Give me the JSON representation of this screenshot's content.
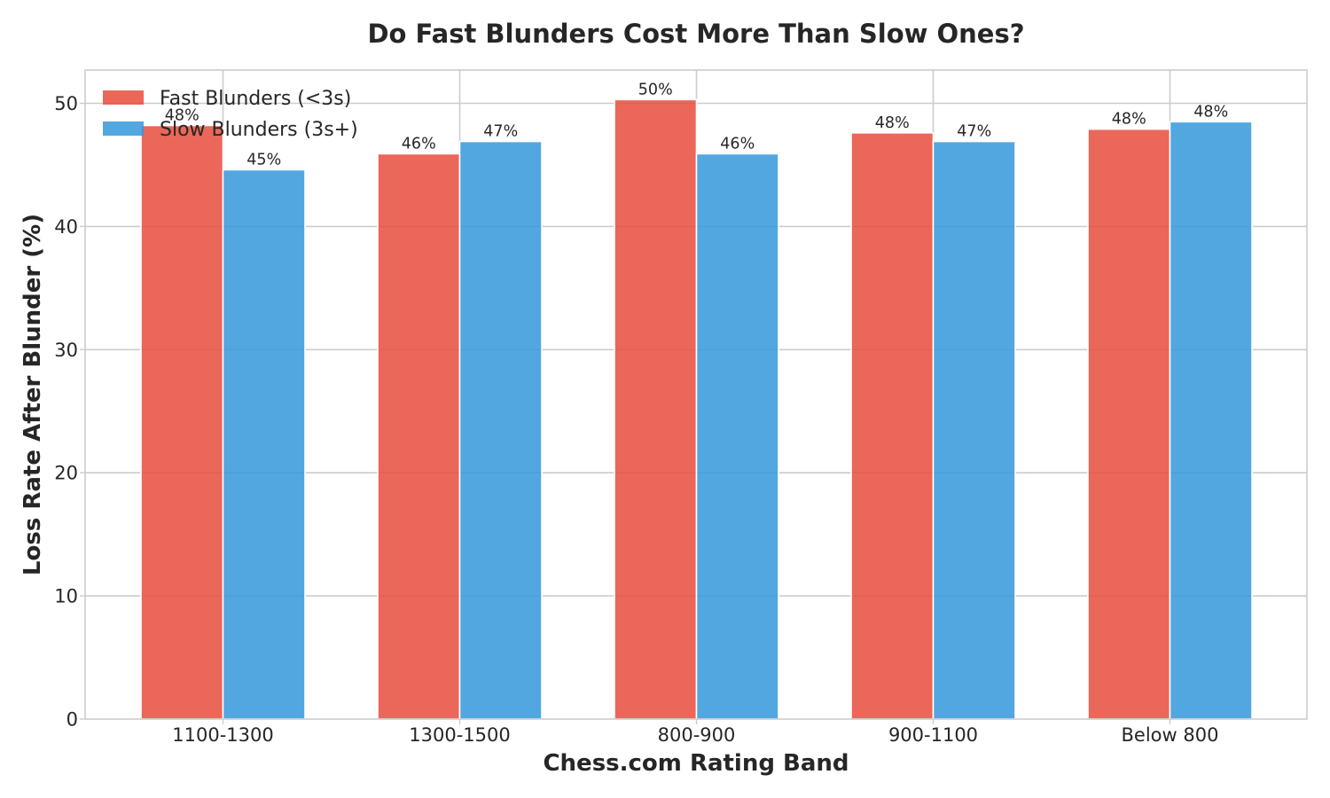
{
  "chart_data": {
    "type": "bar",
    "title": "Do Fast Blunders Cost More Than Slow Ones?",
    "xlabel": "Chess.com Rating Band",
    "ylabel": "Loss Rate After Blunder (%)",
    "categories": [
      "1100-1300",
      "1300-1500",
      "800-900",
      "900-1100",
      "Below 800"
    ],
    "series": [
      {
        "name": "Fast Blunders (<3s)",
        "color": "#e74c3c",
        "values": [
          48.2,
          45.9,
          50.3,
          47.6,
          47.9
        ],
        "labels": [
          "48%",
          "46%",
          "50%",
          "48%",
          "48%"
        ]
      },
      {
        "name": "Slow Blunders (3s+)",
        "color": "#3498db",
        "values": [
          44.6,
          46.9,
          45.9,
          46.9,
          48.5
        ],
        "labels": [
          "45%",
          "47%",
          "46%",
          "47%",
          "48%"
        ]
      }
    ],
    "ylim": [
      0,
      52.7
    ],
    "yticks": [
      0,
      10,
      20,
      30,
      40,
      50
    ],
    "grid": true,
    "legend_position": "top-left"
  }
}
